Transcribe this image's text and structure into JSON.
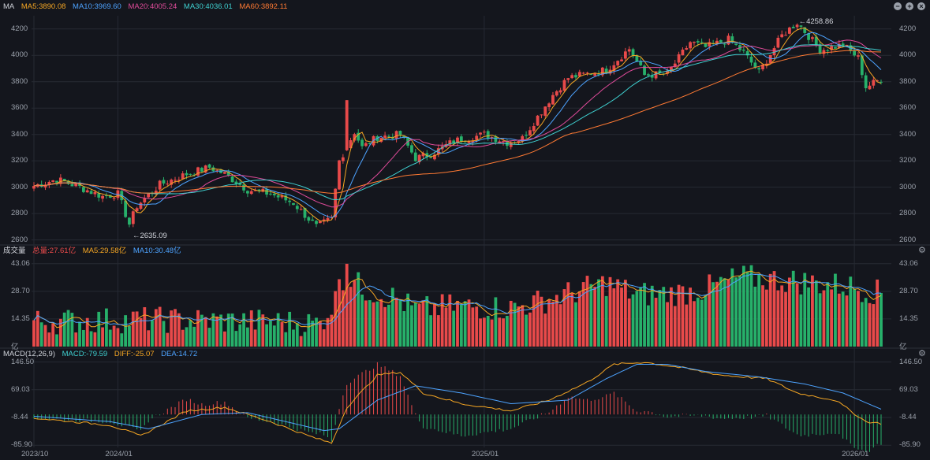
{
  "price_header": {
    "title": "MA",
    "ma5": "MA5:3890.08",
    "ma10": "MA10:3969.60",
    "ma20": "MA20:4005.24",
    "ma30": "MA30:4036.01",
    "ma60": "MA60:3892.11"
  },
  "volume_header": {
    "title": "成交量",
    "total": "总量:27.61亿",
    "ma5": "MA5:29.58亿",
    "ma10": "MA10:30.48亿"
  },
  "macd_header": {
    "title": "MACD(12,26,9)",
    "macd": "MACD:-79.59",
    "diff": "DIFF:-25.07",
    "dea": "DEA:14.72"
  },
  "controls": {
    "minus": "−",
    "plus": "+",
    "close": "×"
  },
  "colors": {
    "up": "#e84a4a",
    "down": "#27b06a",
    "bg": "#14161d",
    "grid": "#262a33",
    "ma5": "#f5a623",
    "ma10": "#4da3ff",
    "ma20": "#e04b9a",
    "ma30": "#3fd0d0",
    "ma60": "#ff7a33",
    "diff": "#f5a623",
    "dea": "#4da3ff"
  },
  "chart_data": [
    {
      "type": "candlestick",
      "title": "MA",
      "y_ticks": [
        2600,
        2800,
        3000,
        3200,
        3400,
        3600,
        3800,
        4000,
        4200
      ],
      "ylim": [
        2580,
        4300
      ],
      "x_labels": [
        "2023/10",
        "2024/01",
        "2025/01",
        "2026/01"
      ],
      "annotations": [
        {
          "text": "←2635.09",
          "value": 2635.09
        },
        {
          "text": "←4258.86",
          "value": 4258.86
        }
      ],
      "close_anchors": [
        [
          0,
          3010
        ],
        [
          6,
          3060
        ],
        [
          12,
          3000
        ],
        [
          18,
          2930
        ],
        [
          22,
          2950
        ],
        [
          25,
          2720
        ],
        [
          27,
          2860
        ],
        [
          33,
          3020
        ],
        [
          40,
          3100
        ],
        [
          46,
          3150
        ],
        [
          50,
          3100
        ],
        [
          56,
          2980
        ],
        [
          62,
          2950
        ],
        [
          68,
          2880
        ],
        [
          74,
          2700
        ],
        [
          78,
          2760
        ],
        [
          80,
          3200
        ],
        [
          84,
          3420
        ],
        [
          86,
          3300
        ],
        [
          90,
          3380
        ],
        [
          96,
          3400
        ],
        [
          100,
          3220
        ],
        [
          104,
          3250
        ],
        [
          110,
          3350
        ],
        [
          118,
          3400
        ],
        [
          124,
          3340
        ],
        [
          128,
          3370
        ],
        [
          136,
          3700
        ],
        [
          140,
          3830
        ],
        [
          150,
          3890
        ],
        [
          156,
          4050
        ],
        [
          160,
          3850
        ],
        [
          166,
          3860
        ],
        [
          172,
          4100
        ],
        [
          176,
          4060
        ],
        [
          182,
          4120
        ],
        [
          186,
          4020
        ],
        [
          190,
          3870
        ],
        [
          196,
          4150
        ],
        [
          200,
          4250
        ],
        [
          206,
          4040
        ],
        [
          212,
          4080
        ],
        [
          216,
          3980
        ],
        [
          218,
          3760
        ],
        [
          222,
          3820
        ]
      ],
      "series_names": [
        "MA5",
        "MA10",
        "MA20",
        "MA30",
        "MA60"
      ]
    },
    {
      "type": "bar",
      "title": "成交量",
      "unit": "亿",
      "y_ticks": [
        14.35,
        28.7,
        43.06
      ],
      "ylim": [
        0,
        45
      ],
      "volume_anchors": [
        [
          0,
          13
        ],
        [
          30,
          14
        ],
        [
          60,
          13
        ],
        [
          75,
          12
        ],
        [
          79,
          24
        ],
        [
          80,
          34
        ],
        [
          82,
          38
        ],
        [
          86,
          30
        ],
        [
          95,
          25
        ],
        [
          100,
          19
        ],
        [
          110,
          21
        ],
        [
          125,
          20
        ],
        [
          132,
          23
        ],
        [
          150,
          33
        ],
        [
          158,
          27
        ],
        [
          170,
          28
        ],
        [
          176,
          30
        ],
        [
          185,
          36
        ],
        [
          200,
          34
        ],
        [
          215,
          31
        ],
        [
          222,
          27.6
        ]
      ]
    },
    {
      "type": "macd",
      "title": "MACD(12,26,9)",
      "y_ticks": [
        146.5,
        69.03,
        -8.44,
        -85.9
      ],
      "ylim": [
        -92,
        150
      ],
      "diff_anchors": [
        [
          0,
          -10
        ],
        [
          20,
          -30
        ],
        [
          28,
          -60
        ],
        [
          40,
          10
        ],
        [
          50,
          20
        ],
        [
          62,
          -20
        ],
        [
          72,
          -60
        ],
        [
          78,
          -80
        ],
        [
          82,
          20
        ],
        [
          90,
          110
        ],
        [
          96,
          118
        ],
        [
          102,
          60
        ],
        [
          112,
          30
        ],
        [
          125,
          10
        ],
        [
          135,
          40
        ],
        [
          145,
          90
        ],
        [
          152,
          140
        ],
        [
          160,
          146
        ],
        [
          170,
          130
        ],
        [
          180,
          110
        ],
        [
          192,
          100
        ],
        [
          200,
          60
        ],
        [
          210,
          40
        ],
        [
          218,
          -20
        ],
        [
          222,
          -25.07
        ]
      ],
      "dea_anchors": [
        [
          0,
          -5
        ],
        [
          20,
          -20
        ],
        [
          30,
          -40
        ],
        [
          44,
          0
        ],
        [
          56,
          5
        ],
        [
          66,
          -20
        ],
        [
          76,
          -45
        ],
        [
          80,
          -40
        ],
        [
          90,
          40
        ],
        [
          100,
          80
        ],
        [
          112,
          60
        ],
        [
          125,
          30
        ],
        [
          140,
          40
        ],
        [
          150,
          100
        ],
        [
          158,
          140
        ],
        [
          166,
          140
        ],
        [
          176,
          120
        ],
        [
          190,
          105
        ],
        [
          202,
          85
        ],
        [
          212,
          60
        ],
        [
          222,
          14.72
        ]
      ]
    }
  ]
}
